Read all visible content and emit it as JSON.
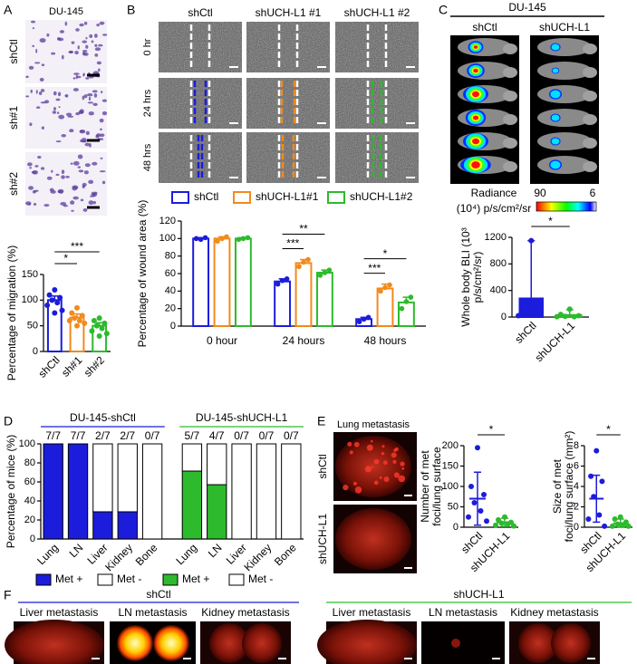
{
  "panel_labels": [
    "A",
    "B",
    "C",
    "D",
    "E",
    "F"
  ],
  "panel_a": {
    "title": "DU-145",
    "image_labels": [
      {
        "text": "shCtl",
        "color": "#1c1cdc"
      },
      {
        "text": "sh#1",
        "color": "#f28a1c"
      },
      {
        "text": "sh#2",
        "color": "#2dba2d"
      }
    ]
  },
  "panel_b": {
    "column_labels": [
      {
        "text": "shCtl",
        "color": "#1c1cdc"
      },
      {
        "text": "shUCH-L1 #1",
        "color": "#f28a1c"
      },
      {
        "text": "shUCH-L1 #2",
        "color": "#2dba2d"
      }
    ],
    "row_labels": [
      "0 hr",
      "24 hrs",
      "48 hrs"
    ]
  },
  "panel_c": {
    "title": "DU-145",
    "column_labels": [
      {
        "text": "shCtl",
        "color": "#1c1cdc"
      },
      {
        "text": "shUCH-L1",
        "color": "#2dba2d"
      }
    ],
    "colorbar": {
      "title": "Radiance",
      "unit": "(10⁴) p/s/cm²/sr",
      "max": 90,
      "min": 6
    }
  },
  "panel_e": {
    "title": "Lung metastasis",
    "image_labels": [
      {
        "text": "shCtl",
        "color": "#1c1cdc"
      },
      {
        "text": "shUCH-L1",
        "color": "#2dba2d"
      }
    ]
  },
  "panel_f": {
    "groups": [
      {
        "name": "shCtl",
        "color": "#1c1cdc",
        "image_labels": [
          "Liver metastasis",
          "LN metastasis",
          "Kidney metastasis"
        ]
      },
      {
        "name": "shUCH-L1",
        "color": "#2dba2d",
        "image_labels": [
          "Liver metastasis",
          "LN metastasis",
          "Kidney metastasis"
        ]
      }
    ]
  },
  "chart_data": [
    {
      "type": "bar",
      "bar_style": "outline",
      "y_label": [
        "Percentage of migration (%)"
      ],
      "categories": [
        "shCtl",
        "sh#1",
        "sh#2"
      ],
      "colors": [
        "#1c1cdc",
        "#f28a1c",
        "#2dba2d"
      ],
      "values": [
        100,
        66,
        50
      ],
      "errors": [
        8,
        7,
        6
      ],
      "points": [
        [
          120,
          110,
          105,
          100,
          95,
          90,
          80,
          75
        ],
        [
          85,
          75,
          70,
          65,
          60,
          60,
          55,
          50
        ],
        [
          65,
          60,
          55,
          50,
          45,
          40,
          35,
          30
        ]
      ],
      "ylim": [
        0,
        150
      ],
      "yticks": [
        0,
        50,
        100,
        150
      ],
      "significance": [
        {
          "label": "*",
          "between": [
            0,
            1
          ]
        },
        {
          "label": "***",
          "between": [
            0,
            2
          ]
        }
      ]
    },
    {
      "type": "grouped_bar",
      "y_label": [
        "Percentage of wound area (%)"
      ],
      "categories": [
        "0 hour",
        "24 hours",
        "48 hours"
      ],
      "series": [
        {
          "name": "shCtl",
          "color": "#1c1cdc",
          "values": [
            100,
            51,
            8
          ],
          "errors": [
            1,
            3,
            2
          ],
          "points": [
            [
              100,
              99,
              101
            ],
            [
              48,
              52,
              54
            ],
            [
              5,
              8,
              10
            ]
          ]
        },
        {
          "name": "shUCH-L1#1",
          "color": "#f28a1c",
          "values": [
            100,
            72,
            43
          ],
          "errors": [
            2,
            4,
            5
          ],
          "points": [
            [
              97,
              100,
              102
            ],
            [
              68,
              73,
              76
            ],
            [
              40,
              44,
              47
            ]
          ]
        },
        {
          "name": "shUCH-L1#2",
          "color": "#2dba2d",
          "values": [
            100,
            61,
            27
          ],
          "errors": [
            1,
            3,
            6
          ],
          "points": [
            [
              99,
              100,
              101
            ],
            [
              58,
              61,
              64
            ],
            [
              20,
              28,
              33
            ]
          ]
        }
      ],
      "ylim": [
        0,
        120
      ],
      "yticks": [
        0,
        20,
        40,
        60,
        80,
        100,
        120
      ],
      "significance": [
        {
          "label": "***",
          "category": 1,
          "between": [
            0,
            1
          ]
        },
        {
          "label": "**",
          "category": 1,
          "between": [
            0,
            2
          ]
        },
        {
          "label": "***",
          "category": 2,
          "between": [
            0,
            1
          ]
        },
        {
          "label": "*",
          "category": 2,
          "between": [
            0,
            2
          ]
        }
      ]
    },
    {
      "type": "bar",
      "bar_style": "filled",
      "y_label": [
        "Whole body BLI (10³",
        "p/s/cm²/sr)"
      ],
      "categories": [
        "shCtl",
        "shUCH-L1"
      ],
      "colors": [
        "#1c1cdc",
        "#2dba2d"
      ],
      "values": [
        280,
        30
      ],
      "errors": [
        870,
        80
      ],
      "points": [
        [
          1150,
          250,
          100,
          50,
          30,
          20
        ],
        [
          120,
          40,
          20,
          10,
          5,
          5
        ]
      ],
      "ylim": [
        0,
        1200
      ],
      "yticks": [
        0,
        400,
        800,
        1200
      ],
      "significance": [
        {
          "label": "*",
          "between": [
            0,
            1
          ]
        }
      ]
    },
    {
      "type": "stacked_bar",
      "y_label": [
        "Percentage of mice (%)"
      ],
      "groups": [
        {
          "name": "DU-145-shCtl",
          "color": "#1c1cdc",
          "categories": [
            "Lung",
            "LN",
            "Liver",
            "Kidney",
            "Bone"
          ],
          "fractions": [
            "7/7",
            "7/7",
            "2/7",
            "2/7",
            "0/7"
          ],
          "series": [
            {
              "name": "Met +",
              "color": "#1c1cdc",
              "values": [
                100,
                100,
                28.6,
                28.6,
                0
              ]
            },
            {
              "name": "Met -",
              "color": "#ffffff",
              "values": [
                0,
                0,
                71.4,
                71.4,
                100
              ]
            }
          ]
        },
        {
          "name": "DU-145-shUCH-L1",
          "color": "#2dba2d",
          "categories": [
            "Lung",
            "LN",
            "Liver",
            "Kidney",
            "Bone"
          ],
          "fractions": [
            "5/7",
            "4/7",
            "0/7",
            "0/7",
            "0/7"
          ],
          "series": [
            {
              "name": "Met +",
              "color": "#2dba2d",
              "values": [
                71.4,
                57.1,
                0,
                0,
                0
              ]
            },
            {
              "name": "Met -",
              "color": "#ffffff",
              "values": [
                28.6,
                42.9,
                100,
                100,
                100
              ]
            }
          ]
        }
      ],
      "ylim": [
        0,
        100
      ],
      "yticks": [
        0,
        20,
        40,
        60,
        80,
        100
      ]
    },
    {
      "type": "bar",
      "bar_style": "mean_line",
      "y_label": [
        "Number of met",
        "foci/lung surface"
      ],
      "categories": [
        "shCtl",
        "shUCH-L1"
      ],
      "colors": [
        "#1c1cdc",
        "#2dba2d"
      ],
      "values": [
        70,
        12
      ],
      "errors": [
        65,
        10
      ],
      "points": [
        [
          195,
          100,
          80,
          60,
          40,
          25,
          15
        ],
        [
          25,
          18,
          12,
          10,
          8,
          5,
          3
        ]
      ],
      "ylim": [
        0,
        200
      ],
      "yticks": [
        0,
        50,
        100,
        150,
        200
      ],
      "significance": [
        {
          "label": "*",
          "between": [
            0,
            1
          ]
        }
      ]
    },
    {
      "type": "bar",
      "bar_style": "mean_line",
      "y_label": [
        "Size of met",
        "foci/lung surface (mm²)"
      ],
      "categories": [
        "shCtl",
        "shUCH-L1"
      ],
      "colors": [
        "#1c1cdc",
        "#2dba2d"
      ],
      "values": [
        2.8,
        0.4
      ],
      "errors": [
        2.3,
        0.4
      ],
      "points": [
        [
          7.5,
          5,
          4.5,
          3,
          1.2,
          0.8,
          0.1
        ],
        [
          1,
          0.8,
          0.5,
          0.3,
          0.2,
          0.1,
          0.1
        ]
      ],
      "ylim": [
        0,
        8
      ],
      "yticks": [
        0,
        2,
        4,
        6,
        8
      ],
      "significance": [
        {
          "label": "*",
          "between": [
            0,
            1
          ]
        }
      ]
    }
  ]
}
